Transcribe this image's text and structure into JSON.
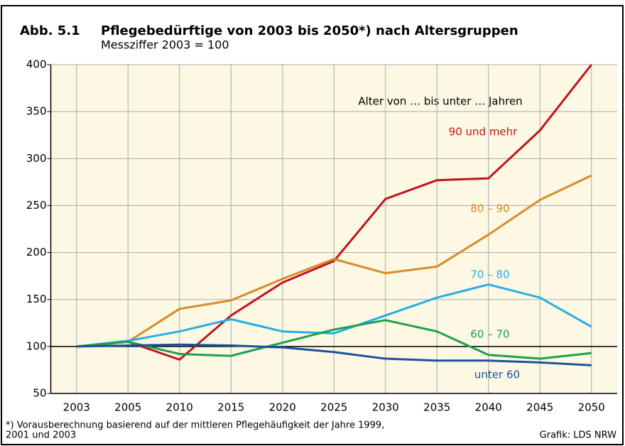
{
  "chart_data": {
    "type": "line",
    "figure_label": "Abb. 5.1",
    "title": "Pflegebedürftige von 2003 bis 2050*) nach Altersgruppen",
    "subtitle": "Messziffer 2003 = 100",
    "annotation": "Alter von … bis unter … Jahren",
    "categories": [
      "2003",
      "2005",
      "2010",
      "2015",
      "2020",
      "2025",
      "2030",
      "2035",
      "2040",
      "2045",
      "2050"
    ],
    "series": [
      {
        "name": "90 und mehr",
        "color": "#c0141c",
        "values": [
          100,
          105,
          86,
          133,
          168,
          191,
          257,
          277,
          279,
          330,
          400
        ]
      },
      {
        "name": "80 – 90",
        "color": "#d98a2a",
        "values": [
          100,
          105,
          140,
          149,
          172,
          193,
          178,
          185,
          219,
          256,
          282
        ]
      },
      {
        "name": "70 – 80",
        "color": "#25aee5",
        "values": [
          100,
          106,
          116,
          129,
          116,
          114,
          133,
          152,
          166,
          152,
          121
        ]
      },
      {
        "name": "60 – 70",
        "color": "#1fa04a",
        "values": [
          100,
          105,
          92,
          90,
          104,
          118,
          128,
          116,
          91,
          87,
          93
        ]
      },
      {
        "name": "unter 60",
        "color": "#1e4f9e",
        "values": [
          100,
          101,
          102,
          101,
          99,
          94,
          87,
          85,
          85,
          83,
          80
        ]
      }
    ],
    "reference_line": 100,
    "ylim": [
      50,
      400
    ],
    "yticks": [
      50,
      100,
      150,
      200,
      250,
      300,
      350,
      400
    ],
    "grid": true,
    "footnote": [
      "*) Vorausberechnung basierend auf der mittleren Pflegehäufigkeit der Jahre 1999,",
      "2001 und 2003"
    ],
    "source": "Grafik: LDS NRW"
  }
}
